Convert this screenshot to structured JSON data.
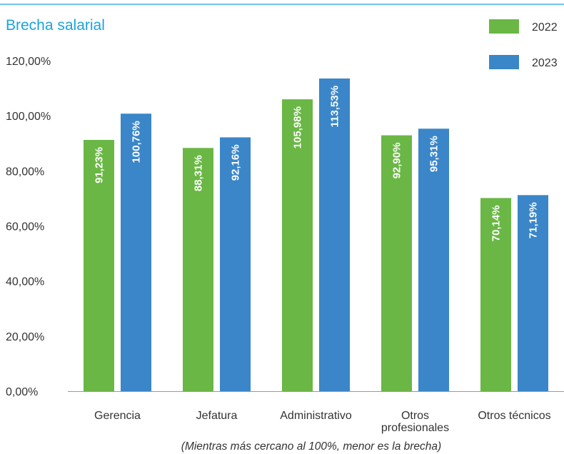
{
  "colors": {
    "series_2022": "#6ab745",
    "series_2023": "#3a86c8",
    "title": "#1ba3de"
  },
  "chart_data": {
    "type": "bar",
    "title": "Brecha salarial",
    "note": "(Mientras más cercano al 100%, menor es la brecha)",
    "categories": [
      "Gerencia",
      "Jefatura",
      "Administrativo",
      "Otros profesionales",
      "Otros técnicos"
    ],
    "category_lines": [
      [
        "Gerencia"
      ],
      [
        "Jefatura"
      ],
      [
        "Administrativo"
      ],
      [
        "Otros",
        "profesionales"
      ],
      [
        "Otros técnicos"
      ]
    ],
    "series": [
      {
        "name": "2022",
        "values": [
          91.23,
          88.31,
          105.98,
          92.9,
          70.14
        ],
        "labels": [
          "91,23%",
          "88,31%",
          "105,98%",
          "92,90%",
          "70,14%"
        ]
      },
      {
        "name": "2023",
        "values": [
          100.76,
          92.16,
          113.53,
          95.31,
          71.19
        ],
        "labels": [
          "100,76%",
          "92,16%",
          "113,53%",
          "95,31%",
          "71,19%"
        ]
      }
    ],
    "ylim": [
      0,
      120
    ],
    "yticks": [
      0,
      20,
      40,
      60,
      80,
      100,
      120
    ],
    "ytick_labels": [
      "0,00%",
      "20,00%",
      "40,00%",
      "60,00%",
      "80,00%",
      "100,00%",
      "120,00%"
    ],
    "legend_position": "top-right",
    "grid": false
  }
}
